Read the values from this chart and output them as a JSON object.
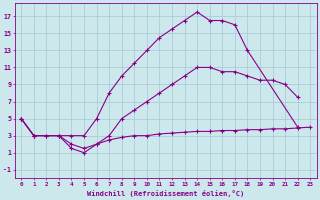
{
  "xlabel": "Windchill (Refroidissement éolien,°C)",
  "background_color": "#cce8ec",
  "grid_color": "#aacdd4",
  "line_color": "#880088",
  "xlim": [
    -0.5,
    23.5
  ],
  "ylim": [
    -2,
    18.5
  ],
  "xticks": [
    0,
    1,
    2,
    3,
    4,
    5,
    6,
    7,
    8,
    9,
    10,
    11,
    12,
    13,
    14,
    15,
    16,
    17,
    18,
    19,
    20,
    21,
    22,
    23
  ],
  "yticks": [
    -1,
    1,
    3,
    5,
    7,
    9,
    11,
    13,
    15,
    17
  ],
  "curve1_x": [
    0,
    1,
    2,
    3,
    4,
    5,
    6,
    7,
    8,
    9,
    10,
    11,
    12,
    13,
    14,
    15,
    16,
    17,
    18,
    22
  ],
  "curve1_y": [
    5,
    3,
    3,
    3,
    3,
    3,
    5,
    8,
    10,
    11.5,
    13,
    14.5,
    15.5,
    16.5,
    17.5,
    16.5,
    16.5,
    16,
    13,
    4
  ],
  "curve2_x": [
    0,
    1,
    3,
    4,
    5,
    6,
    7,
    8,
    9,
    10,
    11,
    12,
    13,
    14,
    15,
    16,
    17,
    18,
    19,
    20,
    21,
    22
  ],
  "curve2_y": [
    5,
    3,
    3,
    1.5,
    1,
    2,
    3,
    5,
    6,
    7,
    8,
    9,
    10,
    11,
    11,
    10.5,
    10.5,
    10,
    9.5,
    9.5,
    9,
    7.5
  ],
  "curve3_x": [
    0,
    1,
    2,
    3,
    4,
    5,
    6,
    7,
    8,
    9,
    10,
    11,
    12,
    13,
    14,
    15,
    16,
    17,
    18,
    19,
    20,
    21,
    22,
    23
  ],
  "curve3_y": [
    5,
    3,
    3,
    3,
    2,
    1.5,
    2,
    2.5,
    2.8,
    3,
    3,
    3.2,
    3.3,
    3.4,
    3.5,
    3.5,
    3.6,
    3.6,
    3.7,
    3.7,
    3.8,
    3.8,
    3.9,
    4
  ]
}
